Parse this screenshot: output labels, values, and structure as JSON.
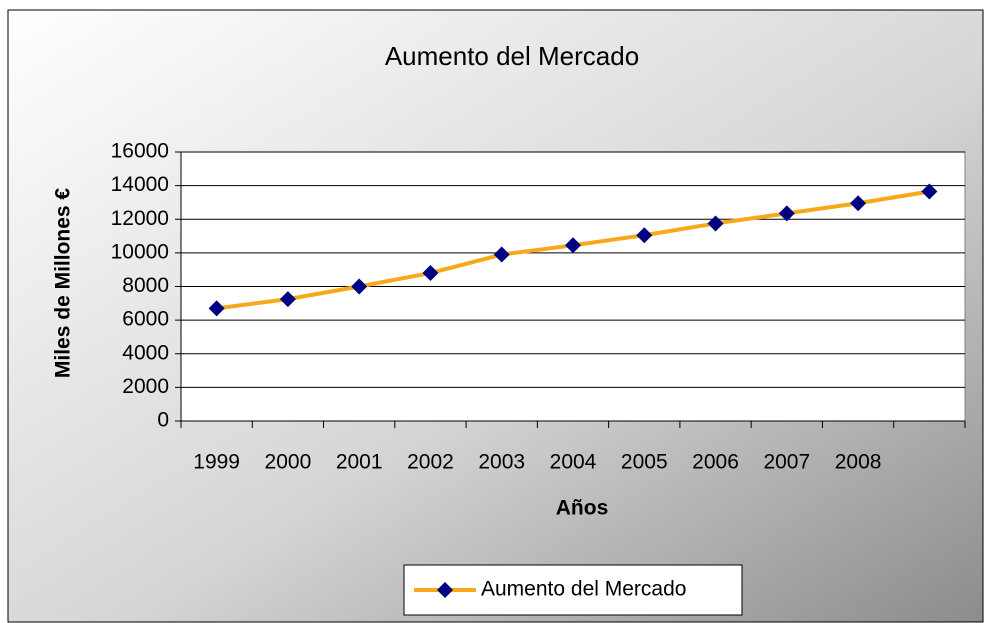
{
  "chart_data": {
    "type": "line",
    "title": "Aumento del Mercado",
    "x_label": "Años",
    "y_label": "Miles de Millones €",
    "categories": [
      "1999",
      "2000",
      "2001",
      "2002",
      "2003",
      "2004",
      "2005",
      "2006",
      "2007",
      "2008",
      null
    ],
    "series": [
      {
        "name": "Aumento del Mercado",
        "color": "#f7a81b",
        "marker_color": "#000080",
        "values": [
          6700,
          7250,
          8000,
          8800,
          9900,
          10450,
          11050,
          11750,
          12350,
          12950,
          13650
        ]
      }
    ],
    "ylim": [
      0,
      16000
    ],
    "yticks": [
      0,
      2000,
      4000,
      6000,
      8000,
      10000,
      12000,
      14000,
      16000
    ],
    "grid": true,
    "legend": "bottom"
  }
}
